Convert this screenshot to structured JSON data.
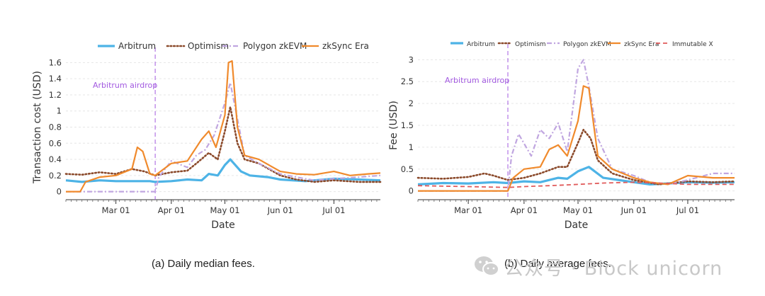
{
  "chart_data": [
    {
      "type": "line",
      "caption": "(a) Daily median fees.",
      "ylabel": "Transaction cost (USD)",
      "xlabel": "Date",
      "ylim": [
        -0.1,
        1.7
      ],
      "yticks": [
        0,
        0.2,
        0.4,
        0.6,
        0.8,
        1,
        1.2,
        1.4,
        1.6
      ],
      "ytick_labels": [
        "0",
        "0.2",
        "0.4",
        "0.6",
        "0.8",
        "1",
        "1.2",
        "1.4",
        "1.6"
      ],
      "xlim": [
        "2023-02-01",
        "2023-07-27"
      ],
      "xtick_labels": [
        "Mar 01",
        "Apr 01",
        "May 01",
        "Jun 01",
        "Jul 01"
      ],
      "xtick_dates": [
        "2023-03-01",
        "2023-04-01",
        "2023-05-01",
        "2023-06-01",
        "2023-07-01"
      ],
      "grid": true,
      "legend_position": "top",
      "annotation": {
        "text": "Arbitrum airdrop",
        "x": "2023-03-23",
        "color": "#a259e0"
      },
      "series": [
        {
          "name": "Arbitrum",
          "color": "#4db3e6",
          "style": "solid",
          "width": 3.2,
          "x": [
            "2023-02-01",
            "2023-02-10",
            "2023-02-20",
            "2023-03-01",
            "2023-03-10",
            "2023-03-20",
            "2023-03-23",
            "2023-04-01",
            "2023-04-10",
            "2023-04-18",
            "2023-04-22",
            "2023-04-27",
            "2023-05-01",
            "2023-05-04",
            "2023-05-10",
            "2023-05-15",
            "2023-05-25",
            "2023-06-01",
            "2023-06-15",
            "2023-07-01",
            "2023-07-15",
            "2023-07-27"
          ],
          "y": [
            0.14,
            0.12,
            0.14,
            0.13,
            0.13,
            0.13,
            0.12,
            0.13,
            0.15,
            0.14,
            0.22,
            0.2,
            0.33,
            0.4,
            0.25,
            0.2,
            0.18,
            0.15,
            0.13,
            0.16,
            0.15,
            0.14
          ]
        },
        {
          "name": "Optimism",
          "color": "#8b4a2b",
          "style": "dotted",
          "width": 2.6,
          "x": [
            "2023-02-01",
            "2023-02-10",
            "2023-02-20",
            "2023-03-01",
            "2023-03-10",
            "2023-03-17",
            "2023-03-23",
            "2023-04-01",
            "2023-04-10",
            "2023-04-15",
            "2023-04-22",
            "2023-04-27",
            "2023-05-01",
            "2023-05-04",
            "2023-05-08",
            "2023-05-12",
            "2023-05-20",
            "2023-06-01",
            "2023-06-10",
            "2023-06-20",
            "2023-07-01",
            "2023-07-15",
            "2023-07-27"
          ],
          "y": [
            0.22,
            0.21,
            0.24,
            0.22,
            0.28,
            0.25,
            0.2,
            0.24,
            0.26,
            0.35,
            0.48,
            0.4,
            0.75,
            1.05,
            0.6,
            0.4,
            0.35,
            0.2,
            0.15,
            0.12,
            0.14,
            0.12,
            0.12
          ]
        },
        {
          "name": "Polygon zkEVM",
          "color": "#c0a6e0",
          "style": "dashdot",
          "width": 2.2,
          "x": [
            "2023-02-01",
            "2023-03-23",
            "2023-03-25",
            "2023-04-01",
            "2023-04-10",
            "2023-04-15",
            "2023-04-20",
            "2023-04-25",
            "2023-05-01",
            "2023-05-04",
            "2023-05-08",
            "2023-05-12",
            "2023-05-20",
            "2023-06-01",
            "2023-06-10",
            "2023-06-20",
            "2023-07-01",
            "2023-07-15",
            "2023-07-27"
          ],
          "y": [
            0,
            0,
            0.18,
            0.38,
            0.3,
            0.45,
            0.52,
            0.7,
            1.1,
            1.35,
            0.9,
            0.45,
            0.35,
            0.22,
            0.18,
            0.14,
            0.16,
            0.18,
            0.2
          ]
        },
        {
          "name": "zkSync Era",
          "color": "#f08a2c",
          "style": "solid",
          "width": 2.2,
          "x": [
            "2023-02-01",
            "2023-02-09",
            "2023-02-12",
            "2023-02-20",
            "2023-03-01",
            "2023-03-10",
            "2023-03-13",
            "2023-03-16",
            "2023-03-20",
            "2023-03-23",
            "2023-04-01",
            "2023-04-10",
            "2023-04-18",
            "2023-04-22",
            "2023-04-26",
            "2023-05-01",
            "2023-05-03",
            "2023-05-05",
            "2023-05-08",
            "2023-05-12",
            "2023-05-20",
            "2023-06-01",
            "2023-06-10",
            "2023-06-20",
            "2023-07-01",
            "2023-07-10",
            "2023-07-20",
            "2023-07-27"
          ],
          "y": [
            0,
            0,
            0.12,
            0.18,
            0.2,
            0.28,
            0.55,
            0.5,
            0.22,
            0.2,
            0.35,
            0.38,
            0.65,
            0.75,
            0.55,
            0.95,
            1.6,
            1.62,
            0.8,
            0.45,
            0.4,
            0.25,
            0.22,
            0.21,
            0.25,
            0.2,
            0.22,
            0.23
          ]
        }
      ]
    },
    {
      "type": "line",
      "caption": "(b) Daily average fees.",
      "ylabel": "Fee (USD)",
      "xlabel": "Date",
      "ylim": [
        -0.2,
        3.2
      ],
      "yticks": [
        0,
        0.5,
        1,
        1.5,
        2,
        2.5,
        3
      ],
      "ytick_labels": [
        "0",
        "0.5",
        "1",
        "1.5",
        "2",
        "2.5",
        "3"
      ],
      "xlim": [
        "2023-02-01",
        "2023-07-27"
      ],
      "xtick_labels": [
        "Mar 01",
        "Apr 01",
        "May 01",
        "Jun 01",
        "Jul 01"
      ],
      "xtick_dates": [
        "2023-03-01",
        "2023-04-01",
        "2023-05-01",
        "2023-06-01",
        "2023-07-01"
      ],
      "grid": true,
      "legend_position": "top",
      "annotation": {
        "text": "Arbitrum airdrop",
        "x": "2023-03-23",
        "color": "#a259e0"
      },
      "series": [
        {
          "name": "Arbitrum",
          "color": "#4db3e6",
          "style": "solid",
          "width": 3.2,
          "x": [
            "2023-02-01",
            "2023-02-15",
            "2023-03-01",
            "2023-03-15",
            "2023-03-23",
            "2023-04-01",
            "2023-04-10",
            "2023-04-20",
            "2023-04-25",
            "2023-05-01",
            "2023-05-07",
            "2023-05-15",
            "2023-06-01",
            "2023-06-10",
            "2023-06-20",
            "2023-07-01",
            "2023-07-15",
            "2023-07-27"
          ],
          "y": [
            0.15,
            0.18,
            0.17,
            0.2,
            0.18,
            0.22,
            0.2,
            0.3,
            0.28,
            0.45,
            0.55,
            0.3,
            0.2,
            0.15,
            0.17,
            0.2,
            0.19,
            0.2
          ]
        },
        {
          "name": "Optimism",
          "color": "#8b4a2b",
          "style": "dotted",
          "width": 2.6,
          "x": [
            "2023-02-01",
            "2023-02-15",
            "2023-03-01",
            "2023-03-10",
            "2023-03-15",
            "2023-03-23",
            "2023-04-01",
            "2023-04-10",
            "2023-04-20",
            "2023-04-25",
            "2023-05-01",
            "2023-05-04",
            "2023-05-08",
            "2023-05-12",
            "2023-05-20",
            "2023-06-01",
            "2023-06-15",
            "2023-07-01",
            "2023-07-15",
            "2023-07-27"
          ],
          "y": [
            0.3,
            0.28,
            0.32,
            0.4,
            0.35,
            0.25,
            0.3,
            0.4,
            0.55,
            0.55,
            1.1,
            1.4,
            1.2,
            0.7,
            0.4,
            0.25,
            0.15,
            0.22,
            0.2,
            0.22
          ]
        },
        {
          "name": "Polygon zkEVM",
          "color": "#c0a6e0",
          "style": "dashdot",
          "width": 2.2,
          "x": [
            "2023-02-01",
            "2023-03-23",
            "2023-03-25",
            "2023-03-29",
            "2023-04-05",
            "2023-04-10",
            "2023-04-15",
            "2023-04-20",
            "2023-04-25",
            "2023-05-01",
            "2023-05-04",
            "2023-05-07",
            "2023-05-12",
            "2023-05-20",
            "2023-06-01",
            "2023-06-10",
            "2023-06-20",
            "2023-07-01",
            "2023-07-15",
            "2023-07-27"
          ],
          "y": [
            0,
            0,
            0.8,
            1.3,
            0.8,
            1.4,
            1.2,
            1.55,
            0.9,
            2.8,
            3.0,
            2.4,
            1.2,
            0.5,
            0.35,
            0.2,
            0.15,
            0.25,
            0.4,
            0.4
          ]
        },
        {
          "name": "zkSync Era",
          "color": "#f08a2c",
          "style": "solid",
          "width": 2.2,
          "x": [
            "2023-02-01",
            "2023-03-23",
            "2023-03-26",
            "2023-04-01",
            "2023-04-10",
            "2023-04-15",
            "2023-04-20",
            "2023-04-25",
            "2023-05-01",
            "2023-05-04",
            "2023-05-07",
            "2023-05-12",
            "2023-05-20",
            "2023-06-01",
            "2023-06-10",
            "2023-06-20",
            "2023-07-01",
            "2023-07-15",
            "2023-07-27"
          ],
          "y": [
            0,
            0,
            0.3,
            0.5,
            0.55,
            0.95,
            1.05,
            0.8,
            1.6,
            2.4,
            2.35,
            0.8,
            0.5,
            0.3,
            0.2,
            0.15,
            0.35,
            0.3,
            0.3
          ]
        },
        {
          "name": "Immutable X",
          "color": "#e05a5a",
          "style": "dashed",
          "width": 1.8,
          "x": [
            "2023-02-01",
            "2023-03-01",
            "2023-03-23",
            "2023-04-01",
            "2023-04-15",
            "2023-05-01",
            "2023-05-15",
            "2023-06-01",
            "2023-06-15",
            "2023-07-01",
            "2023-07-27"
          ],
          "y": [
            0.12,
            0.1,
            0.08,
            0.1,
            0.12,
            0.15,
            0.18,
            0.2,
            0.18,
            0.15,
            0.15
          ]
        }
      ]
    }
  ],
  "watermark": {
    "text": "公众号 · Block unicorn",
    "color": "#c8c8c8"
  }
}
